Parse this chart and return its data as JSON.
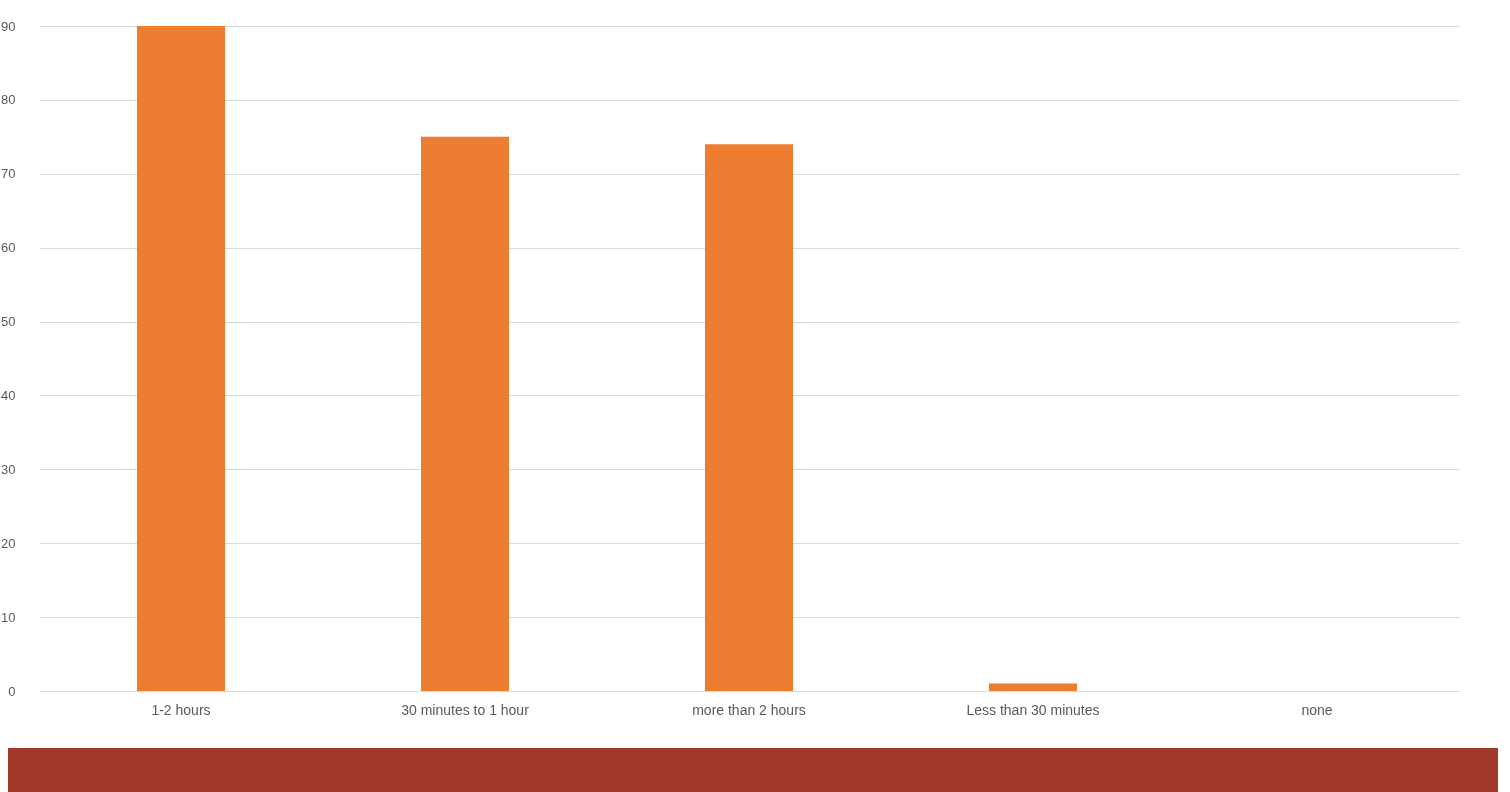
{
  "chart_data": {
    "type": "bar",
    "categories": [
      "1-2 hours",
      "30 minutes to 1 hour",
      "more than 2 hours",
      "Less than 30 minutes",
      "none"
    ],
    "values": [
      90,
      75,
      74,
      1,
      0
    ],
    "color": "#ed7d31",
    "ylim": [
      0,
      90
    ],
    "yticks": [
      0,
      10,
      20,
      30,
      40,
      50,
      60,
      70,
      80,
      90
    ],
    "grid": "y"
  }
}
